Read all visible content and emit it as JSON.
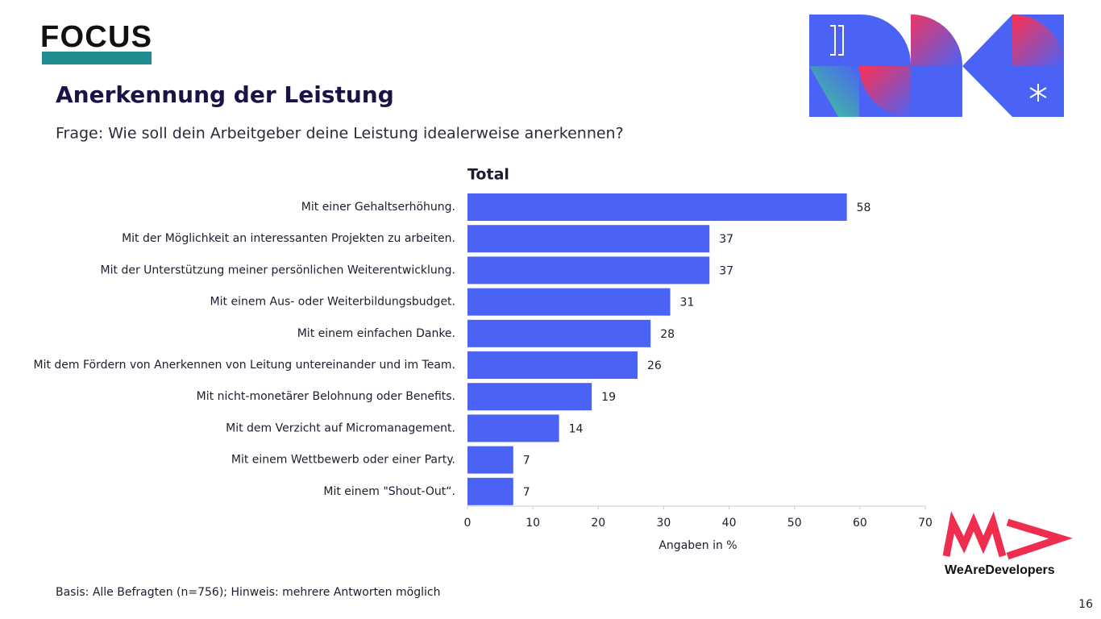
{
  "slide": {
    "logo": "FOCUS",
    "heading": "Anerkennung der Leistung",
    "question": "Frage: Wie soll dein Arbeitgeber deine Leistung idealerweise anerkennen?",
    "footnote": "Basis: Alle Befragten (n=756); Hinweis: mehrere Antworten möglich",
    "brand": "WeAreDevelopers",
    "page_number": 16
  },
  "chart_data": {
    "type": "barh",
    "title": "Total",
    "xlabel": "Angaben in %",
    "categories": [
      "Mit einer Gehaltserhöhung.",
      "Mit der Möglichkeit an interessanten Projekten zu arbeiten.",
      "Mit der Unterstützung meiner persönlichen Weiterentwicklung.",
      "Mit einem Aus- oder Weiterbildungsbudget.",
      "Mit einem einfachen Danke.",
      "Mit dem Fördern von Anerkennen von Leitung untereinander und im Team.",
      "Mit nicht-monetärer Belohnung oder Benefits.",
      "Mit dem Verzicht auf Micromanagement.",
      "Mit einem Wettbewerb oder einer Party.",
      "Mit einem \"Shout-Out“."
    ],
    "values": [
      58,
      37,
      37,
      31,
      28,
      26,
      19,
      14,
      7,
      7
    ],
    "color": "#4b63f5",
    "xlim": [
      0,
      70
    ],
    "xticks": [
      0,
      10,
      20,
      30,
      40,
      50,
      60,
      70
    ],
    "grid": false
  }
}
